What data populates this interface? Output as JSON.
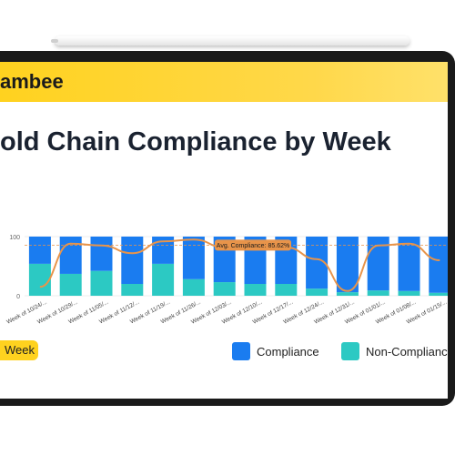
{
  "header": {
    "logo": "ambee"
  },
  "controls": {
    "week_button": "Week"
  },
  "chart_data": {
    "type": "bar",
    "stacked": true,
    "title": "old Chain Compliance by Week",
    "categories": [
      "Week of 10/24/...",
      "Week of 10/29/...",
      "Week of 11/05/...",
      "Week of 11/12/...",
      "Week of 11/19/...",
      "Week of 11/26/...",
      "Week of 12/03/...",
      "Week of 12/10/...",
      "Week of 12/17/...",
      "Week of 12/24/...",
      "Week of 12/31/...",
      "Week of 01/01/...",
      "Week of 01/08/...",
      "Week of 01/15/..."
    ],
    "series": [
      {
        "name": "Compliance",
        "color": "#1a7cf0",
        "values": [
          46,
          63,
          58,
          80,
          46,
          72,
          77,
          80,
          80,
          88,
          94,
          91,
          92,
          95
        ]
      },
      {
        "name": "Non-Compliance",
        "color": "#2cc9c3",
        "values": [
          54,
          37,
          42,
          20,
          54,
          28,
          23,
          20,
          20,
          12,
          6,
          9,
          8,
          5
        ]
      }
    ],
    "trend": {
      "color": "#e8944a",
      "values": [
        15,
        88,
        85,
        72,
        92,
        95,
        82,
        78,
        82,
        62,
        8,
        85,
        88,
        60
      ]
    },
    "average": {
      "value": 85.62,
      "label": "Avg. Compliance: 85.62%"
    },
    "ylim": [
      0,
      100
    ],
    "yticks": [
      0,
      100
    ]
  }
}
